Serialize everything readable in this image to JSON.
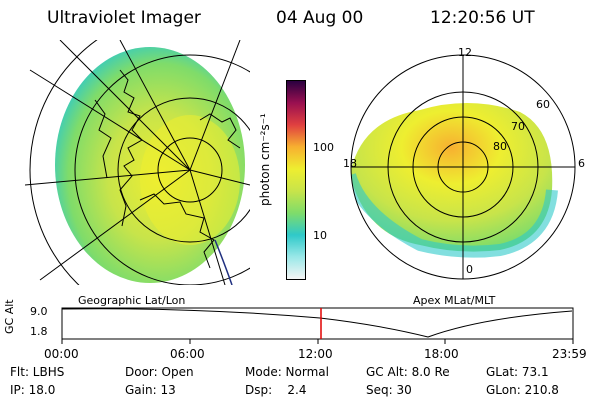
{
  "header": {
    "instrument": "Ultraviolet Imager",
    "date": "04 Aug 00",
    "time": "12:20:56 UT"
  },
  "left_panel": {
    "label": "Geographic Lat/Lon"
  },
  "right_panel": {
    "label": "Apex MLat/MLT",
    "mlt_labels": {
      "top": "12",
      "left": "18",
      "right": "6",
      "bottom": "0"
    },
    "mlat_labels": [
      "60",
      "70",
      "80"
    ]
  },
  "colorbar": {
    "unit": "photon cm⁻²s⁻¹",
    "ticks": [
      "100",
      "10"
    ],
    "colors": [
      "#f5f5f5",
      "#9ae8e8",
      "#2fc9c9",
      "#7fdc6a",
      "#c8e44a",
      "#eeee30",
      "#f7b030",
      "#e04040",
      "#9a1050",
      "#2a0040"
    ]
  },
  "timeline": {
    "axis_label": "GC Alt",
    "y_ticks": [
      "9.0",
      "1.8"
    ],
    "x_ticks": [
      "00:00",
      "06:00",
      "12:00",
      "18:00",
      "23:59"
    ],
    "current_marker_color": "#e00000"
  },
  "footer": {
    "row1": {
      "flt": "Flt: LBHS",
      "door": "Door: Open",
      "mode": "Mode: Normal",
      "gc_alt": "GC Alt: 8.0 Re",
      "glat": "GLat:  73.1"
    },
    "row2": {
      "ip": "IP: 18.0",
      "gain": "Gain: 13",
      "dsp": "Dsp:    2.4",
      "seq": "Seq: 30",
      "glon": "GLon: 210.8"
    }
  }
}
